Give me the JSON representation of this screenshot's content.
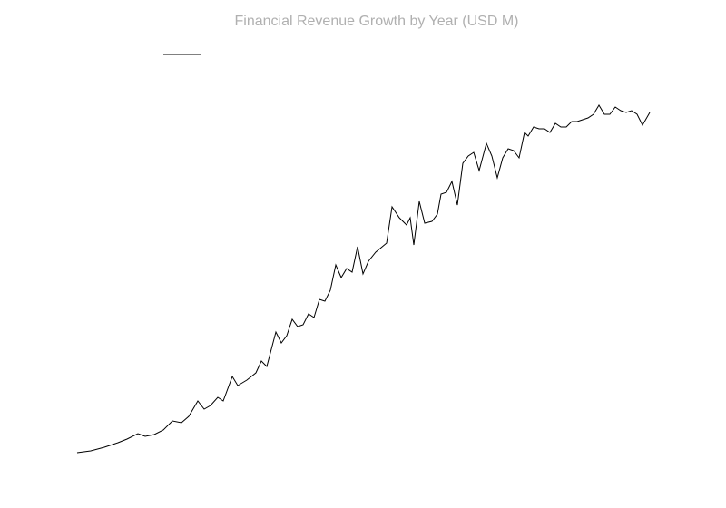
{
  "chart_data": {
    "type": "line",
    "title": "Financial Revenue Growth by Year (USD M)",
    "legend": "upper left",
    "x": [
      0,
      15,
      30,
      45,
      55,
      67,
      75,
      85,
      95,
      105,
      115,
      123,
      133,
      140,
      147,
      155,
      161,
      171,
      177,
      187,
      197,
      203,
      209,
      219,
      225,
      231,
      237,
      243,
      249,
      255,
      261,
      267,
      273,
      279,
      285,
      291,
      297,
      303,
      309,
      315,
      321,
      329,
      341,
      347,
      355,
      363,
      367,
      371,
      377,
      383,
      391,
      397,
      401,
      407,
      413,
      419,
      425,
      431,
      437,
      443,
      451,
      457,
      463,
      469,
      475,
      481,
      487,
      493,
      497,
      503,
      509,
      515,
      521,
      527,
      533,
      539,
      545,
      551,
      557,
      563,
      569,
      575,
      581,
      587,
      593,
      599,
      605,
      611,
      617,
      623,
      631
    ],
    "series": [
      {
        "color": "#000000",
        "values": [
          5.25,
          5.75,
          6.75,
          8,
          9,
          10.5,
          9.75,
          10.25,
          11.5,
          14,
          13.5,
          15.25,
          19.5,
          17.25,
          18.25,
          20.5,
          19.5,
          26.25,
          23.75,
          25.25,
          27.25,
          30.5,
          29,
          38.5,
          35.5,
          37.5,
          42,
          40,
          40.5,
          43.5,
          42.5,
          47.5,
          47,
          50,
          57,
          53.5,
          56,
          55,
          62,
          54.5,
          58,
          60.5,
          63,
          73,
          70,
          68,
          70,
          62.5,
          74.5,
          68.5,
          69,
          71,
          76.5,
          77,
          80,
          73.5,
          85,
          87,
          88,
          83,
          90.5,
          87,
          81,
          86.5,
          89,
          88.5,
          86.5,
          93.5,
          92.5,
          95,
          94.5,
          94.5,
          93.5,
          96,
          95,
          95,
          96.5,
          96.5,
          97,
          97.5,
          98.5,
          101,
          98.5,
          98.5,
          100.5,
          99.5,
          99,
          99.5,
          98.5,
          95.5,
          99
        ]
      }
    ],
    "xlim": [
      0,
      631
    ],
    "ylim": [
      0,
      105
    ]
  }
}
